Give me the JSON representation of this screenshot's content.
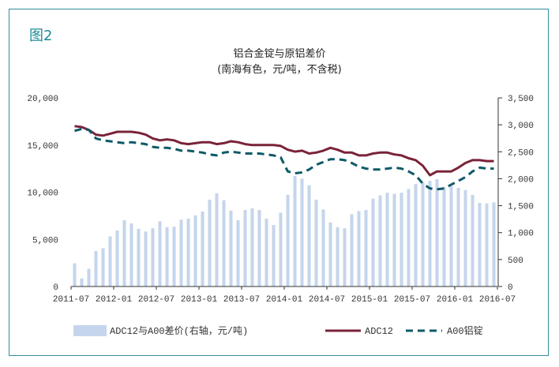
{
  "figure_label": "图2",
  "chart_data": {
    "type": "line+bar",
    "title": "铝合金锭与原铝差价",
    "subtitle": "(南海有色，元/吨，不含税)",
    "x_ticks": [
      "2011-07",
      "2012-01",
      "2012-07",
      "2013-01",
      "2013-07",
      "2014-01",
      "2014-07",
      "2015-01",
      "2015-07",
      "2016-01",
      "2016-07"
    ],
    "y_left": {
      "ticks": [
        "20,000",
        "15,000",
        "10,000",
        "5,000",
        "0"
      ],
      "range": [
        0,
        20000
      ]
    },
    "y_right": {
      "ticks": [
        "3,500",
        "3,000",
        "2,500",
        "2,000",
        "1,500",
        "1,000",
        "500",
        "0"
      ],
      "range": [
        0,
        3500
      ]
    },
    "series": [
      {
        "name": "ADC12与A00差价(右轴，元/吨)",
        "kind": "bar",
        "axis": "right",
        "color": "#c5d5ec",
        "values": [
          430,
          150,
          330,
          660,
          710,
          930,
          1040,
          1230,
          1170,
          1070,
          1020,
          1080,
          1210,
          1100,
          1110,
          1240,
          1260,
          1320,
          1390,
          1610,
          1730,
          1600,
          1410,
          1230,
          1420,
          1450,
          1420,
          1260,
          1140,
          1370,
          1700,
          2050,
          2000,
          1880,
          1610,
          1430,
          1190,
          1100,
          1080,
          1340,
          1400,
          1420,
          1630,
          1690,
          1740,
          1720,
          1740,
          1810,
          1900,
          1940,
          1960,
          1990,
          1850,
          1860,
          1830,
          1790,
          1700,
          1550,
          1540,
          1560
        ]
      },
      {
        "name": "ADC12",
        "kind": "line",
        "axis": "left",
        "color": "#7a2338",
        "values": [
          17000,
          16900,
          16600,
          16100,
          16000,
          16200,
          16400,
          16400,
          16400,
          16300,
          16100,
          15700,
          15500,
          15600,
          15500,
          15200,
          15100,
          15200,
          15300,
          15300,
          15100,
          15200,
          15400,
          15300,
          15100,
          15000,
          15000,
          15000,
          15000,
          14900,
          14500,
          14300,
          14400,
          14100,
          14200,
          14400,
          14700,
          14500,
          14200,
          14200,
          13900,
          13900,
          14100,
          14200,
          14200,
          14000,
          13900,
          13600,
          13400,
          12800,
          11800,
          12200,
          12200,
          12200,
          12600,
          13100,
          13400,
          13400,
          13300,
          13300
        ]
      },
      {
        "name": "A00铝锭",
        "kind": "line",
        "axis": "left",
        "color": "#0e5a68",
        "dashed": true,
        "values": [
          16500,
          16700,
          16600,
          15700,
          15500,
          15400,
          15300,
          15200,
          15300,
          15200,
          15100,
          14800,
          14700,
          14700,
          14600,
          14400,
          14400,
          14300,
          14200,
          14000,
          13900,
          14200,
          14300,
          14200,
          14100,
          14100,
          14100,
          14000,
          13900,
          13700,
          12200,
          12000,
          12100,
          12400,
          12900,
          13200,
          13500,
          13500,
          13400,
          13100,
          12700,
          12500,
          12400,
          12400,
          12500,
          12600,
          12500,
          12200,
          11800,
          10900,
          10400,
          10300,
          10400,
          10800,
          11200,
          11600,
          12200,
          12600,
          12500,
          12500
        ]
      }
    ],
    "legend": "bottom",
    "grid": false
  }
}
